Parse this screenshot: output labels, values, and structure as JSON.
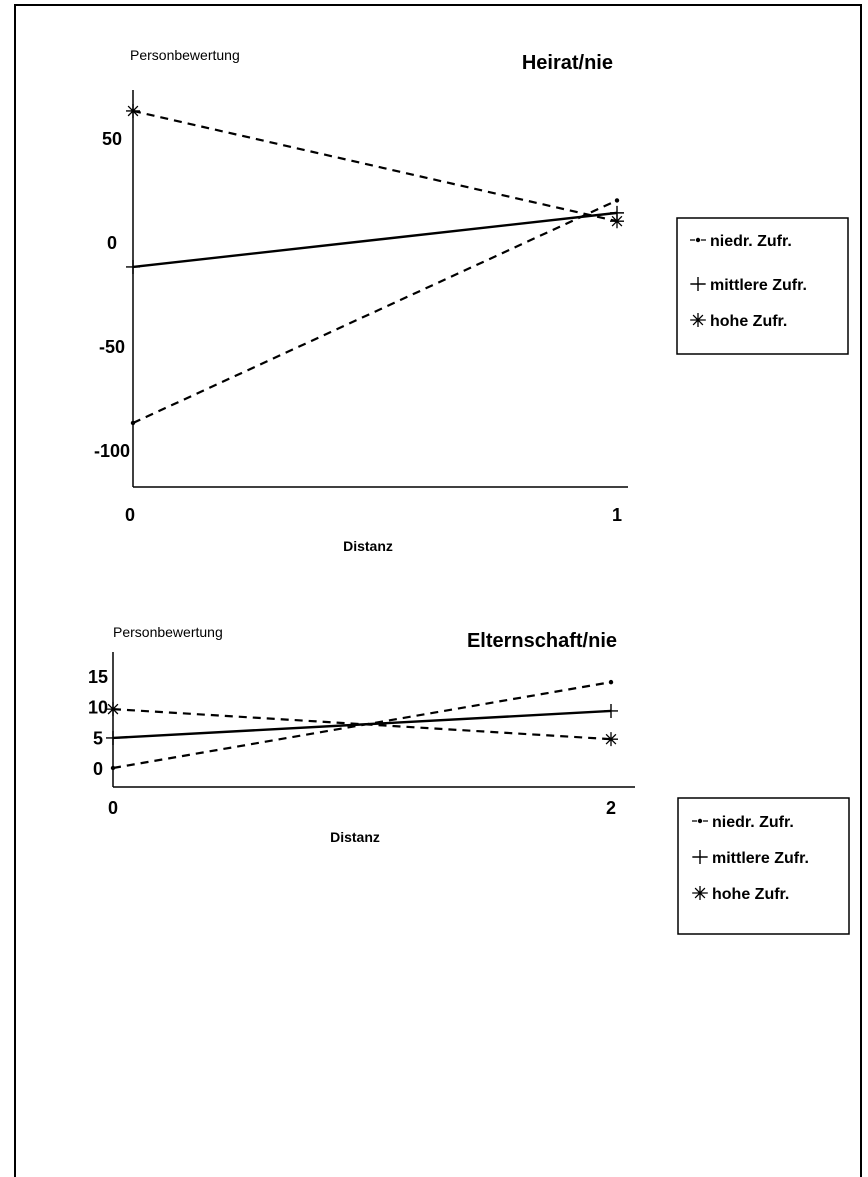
{
  "chart_data": [
    {
      "type": "line",
      "title": "Heirat/nie",
      "ylabel": "Personbewertung",
      "xlabel": "Distanz",
      "x": [
        0,
        1
      ],
      "xticks": [
        "0",
        "1"
      ],
      "yticks": [
        50,
        0,
        -50,
        -100
      ],
      "ytick_labels": [
        "50",
        "0",
        "-50",
        "-100"
      ],
      "ylim": [
        -118,
        70
      ],
      "series": [
        {
          "name": "niedr. Zufr.",
          "values": [
            -87,
            20
          ],
          "style": "dashed",
          "marker": "dot"
        },
        {
          "name": "mittlere Zufr.",
          "values": [
            -12,
            14
          ],
          "style": "solid",
          "marker": "plus"
        },
        {
          "name": "hohe Zufr.",
          "values": [
            63,
            10
          ],
          "style": "dashed",
          "marker": "asterisk"
        }
      ],
      "legend": {
        "position": "right",
        "items": [
          "niedr. Zufr.",
          "mittlere Zufr.",
          "hohe Zufr."
        ]
      }
    },
    {
      "type": "line",
      "title": "Elternschaft/nie",
      "ylabel": "Personbewertung",
      "xlabel": "Distanz",
      "x": [
        0,
        2
      ],
      "xticks": [
        "0",
        "2"
      ],
      "yticks": [
        15,
        10,
        5,
        0
      ],
      "ytick_labels": [
        "15",
        "10",
        "5",
        "0"
      ],
      "ylim": [
        -1.5,
        16
      ],
      "series": [
        {
          "name": "niedr. Zufr.",
          "values": [
            0,
            14
          ],
          "style": "dashed",
          "marker": "dot"
        },
        {
          "name": "mittlere Zufr.",
          "values": [
            4.9,
            9.3
          ],
          "style": "solid",
          "marker": "plus"
        },
        {
          "name": "hohe Zufr.",
          "values": [
            9.6,
            4.7
          ],
          "style": "dashed",
          "marker": "asterisk"
        }
      ],
      "legend": {
        "position": "right",
        "items": [
          "niedr. Zufr.",
          "mittlere Zufr.",
          "hohe Zufr."
        ]
      }
    }
  ]
}
